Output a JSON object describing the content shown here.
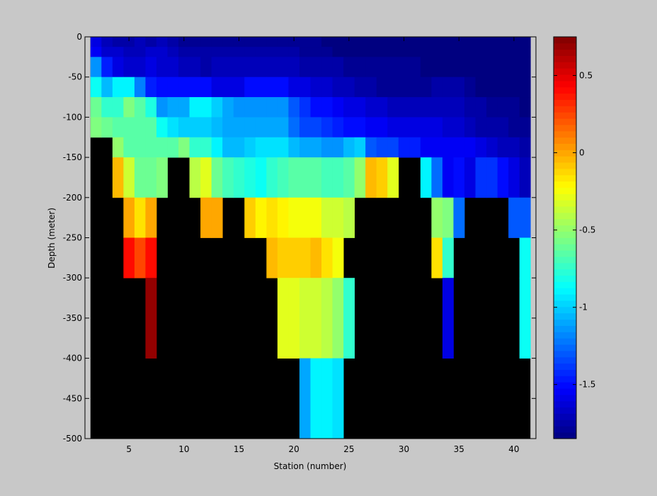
{
  "colors": {
    "figure_bg": "#c8c8c8",
    "mask": "#000000"
  },
  "chart_data": {
    "type": "heatmap",
    "xlabel": "Station (number)",
    "ylabel": "Depth (meter)",
    "xlim": [
      1,
      42
    ],
    "ylim": [
      -500,
      0
    ],
    "xticks": [
      5,
      10,
      15,
      20,
      25,
      30,
      35,
      40
    ],
    "yticks": [
      0,
      -50,
      -100,
      -150,
      -200,
      -250,
      -300,
      -350,
      -400,
      -450,
      -500
    ],
    "colormap": "jet",
    "clim": [
      -1.85,
      0.75
    ],
    "colorbar_ticks": [
      0.5,
      0,
      -0.5,
      -1,
      -1.5
    ],
    "depth_bins": [
      [
        0,
        -12.5
      ],
      [
        -12.5,
        -25
      ],
      [
        -25,
        -50
      ],
      [
        -50,
        -75
      ],
      [
        -75,
        -100
      ],
      [
        -100,
        -125
      ],
      [
        -125,
        -150
      ],
      [
        -150,
        -200
      ],
      [
        -200,
        -250
      ],
      [
        -250,
        -300
      ],
      [
        -300,
        -400
      ],
      [
        -400,
        -500
      ]
    ],
    "stations": [
      2,
      3,
      4,
      5,
      6,
      7,
      8,
      9,
      10,
      11,
      12,
      13,
      14,
      15,
      16,
      17,
      18,
      19,
      20,
      21,
      22,
      23,
      24,
      25,
      26,
      27,
      28,
      29,
      30,
      31,
      32,
      33,
      34,
      35,
      36,
      37,
      38,
      39,
      40,
      41
    ],
    "values_note": "rows = depth_bins, columns = stations; null = no data (black)",
    "values": [
      [
        -1.6,
        -1.7,
        -1.75,
        -1.75,
        -1.7,
        -1.75,
        -1.7,
        -1.75,
        -1.8,
        -1.8,
        -1.8,
        -1.8,
        -1.8,
        -1.8,
        -1.8,
        -1.8,
        -1.8,
        -1.8,
        -1.8,
        -1.8,
        -1.8,
        -1.85,
        -1.85,
        -1.85,
        -1.85,
        -1.85,
        -1.85,
        -1.85,
        -1.85,
        -1.85,
        -1.85,
        -1.85,
        -1.85,
        -1.85,
        -1.85,
        -1.85,
        -1.85,
        -1.85,
        -1.85,
        -1.85
      ],
      [
        -1.55,
        -1.65,
        -1.65,
        -1.7,
        -1.7,
        -1.65,
        -1.65,
        -1.7,
        -1.75,
        -1.75,
        -1.75,
        -1.75,
        -1.75,
        -1.75,
        -1.75,
        -1.75,
        -1.75,
        -1.75,
        -1.75,
        -1.8,
        -1.8,
        -1.8,
        -1.85,
        -1.85,
        -1.85,
        -1.85,
        -1.85,
        -1.85,
        -1.85,
        -1.85,
        -1.85,
        -1.85,
        -1.85,
        -1.85,
        -1.85,
        -1.85,
        -1.85,
        -1.85,
        -1.85,
        -1.85
      ],
      [
        -1.15,
        -1.45,
        -1.6,
        -1.65,
        -1.65,
        -1.6,
        -1.65,
        -1.65,
        -1.7,
        -1.7,
        -1.75,
        -1.7,
        -1.7,
        -1.7,
        -1.7,
        -1.7,
        -1.7,
        -1.7,
        -1.7,
        -1.75,
        -1.75,
        -1.75,
        -1.75,
        -1.8,
        -1.8,
        -1.8,
        -1.8,
        -1.8,
        -1.8,
        -1.8,
        -1.85,
        -1.85,
        -1.85,
        -1.85,
        -1.85,
        -1.85,
        -1.85,
        -1.85,
        -1.85,
        -1.85
      ],
      [
        -0.85,
        -1.05,
        -0.9,
        -0.9,
        -1.2,
        -1.45,
        -1.5,
        -1.5,
        -1.5,
        -1.5,
        -1.5,
        -1.6,
        -1.6,
        -1.6,
        -1.5,
        -1.5,
        -1.5,
        -1.5,
        -1.6,
        -1.6,
        -1.65,
        -1.65,
        -1.7,
        -1.7,
        -1.75,
        -1.75,
        -1.8,
        -1.8,
        -1.8,
        -1.8,
        -1.8,
        -1.75,
        -1.75,
        -1.75,
        -1.8,
        -1.85,
        -1.85,
        -1.85,
        -1.85,
        -1.85
      ],
      [
        -0.6,
        -0.75,
        -0.75,
        -0.55,
        -0.65,
        -0.8,
        -1.15,
        -1.1,
        -1.1,
        -0.9,
        -0.9,
        -1.0,
        -1.1,
        -1.15,
        -1.15,
        -1.15,
        -1.15,
        -1.15,
        -1.3,
        -1.4,
        -1.5,
        -1.5,
        -1.55,
        -1.6,
        -1.6,
        -1.65,
        -1.65,
        -1.7,
        -1.7,
        -1.7,
        -1.7,
        -1.7,
        -1.7,
        -1.7,
        -1.75,
        -1.75,
        -1.8,
        -1.8,
        -1.8,
        -1.85
      ],
      [
        -0.55,
        -0.6,
        -0.65,
        -0.65,
        -0.65,
        -0.65,
        -0.85,
        -0.95,
        -1.0,
        -1.0,
        -1.0,
        -1.05,
        -1.1,
        -1.1,
        -1.1,
        -1.1,
        -1.1,
        -1.1,
        -1.25,
        -1.35,
        -1.35,
        -1.4,
        -1.45,
        -1.5,
        -1.5,
        -1.55,
        -1.55,
        -1.6,
        -1.6,
        -1.6,
        -1.6,
        -1.6,
        -1.65,
        -1.65,
        -1.7,
        -1.75,
        -1.75,
        -1.75,
        -1.8,
        -1.8
      ],
      [
        null,
        null,
        -0.5,
        -0.65,
        -0.65,
        -0.65,
        -0.65,
        -0.65,
        -0.55,
        -0.75,
        -0.75,
        -0.9,
        -1.05,
        -1.05,
        -1.0,
        -0.95,
        -0.95,
        -0.95,
        -1.05,
        -1.1,
        -1.1,
        -1.15,
        -1.15,
        -1.05,
        -1.0,
        -1.3,
        -1.35,
        -1.35,
        -1.45,
        -1.45,
        -1.55,
        -1.55,
        -1.55,
        -1.55,
        -1.55,
        -1.6,
        -1.65,
        -1.7,
        -1.7,
        -1.75
      ],
      [
        null,
        null,
        -0.05,
        -0.35,
        -0.6,
        -0.6,
        -0.55,
        null,
        null,
        -0.4,
        -0.3,
        -0.6,
        -0.7,
        -0.75,
        -0.8,
        -0.85,
        -0.75,
        -0.7,
        -0.65,
        -0.65,
        -0.65,
        -0.7,
        -0.7,
        -0.65,
        -0.5,
        -0.05,
        -0.1,
        -0.3,
        null,
        null,
        -0.9,
        -1.25,
        -1.55,
        -1.5,
        -1.6,
        -1.4,
        -1.4,
        -1.5,
        -1.6,
        -1.7
      ],
      [
        null,
        null,
        null,
        0.0,
        -0.15,
        0.0,
        null,
        null,
        null,
        null,
        0.0,
        0.0,
        null,
        null,
        -0.1,
        -0.2,
        -0.15,
        -0.2,
        -0.25,
        -0.25,
        -0.25,
        -0.35,
        -0.35,
        -0.4,
        null,
        null,
        null,
        null,
        null,
        null,
        null,
        -0.5,
        -0.55,
        -1.25,
        null,
        null,
        null,
        null,
        -1.3,
        -1.3
      ],
      [
        null,
        null,
        null,
        0.4,
        0.25,
        0.4,
        null,
        null,
        null,
        null,
        null,
        null,
        null,
        null,
        null,
        null,
        -0.05,
        -0.1,
        -0.1,
        -0.1,
        -0.05,
        -0.15,
        -0.25,
        null,
        null,
        null,
        null,
        null,
        null,
        null,
        null,
        -0.15,
        -0.75,
        null,
        null,
        null,
        null,
        null,
        null,
        -0.85
      ],
      [
        null,
        null,
        null,
        null,
        null,
        0.7,
        null,
        null,
        null,
        null,
        null,
        null,
        null,
        null,
        null,
        null,
        null,
        -0.3,
        -0.3,
        -0.35,
        -0.35,
        -0.4,
        -0.5,
        -0.75,
        null,
        null,
        null,
        null,
        null,
        null,
        null,
        null,
        -1.6,
        null,
        null,
        null,
        null,
        null,
        null,
        -0.85
      ],
      [
        null,
        null,
        null,
        null,
        null,
        null,
        null,
        null,
        null,
        null,
        null,
        null,
        null,
        null,
        null,
        null,
        null,
        null,
        null,
        -1.1,
        -0.9,
        -0.9,
        -0.95,
        null,
        null,
        null,
        null,
        null,
        null,
        null,
        null,
        null,
        null,
        null,
        null,
        null,
        null,
        null,
        null,
        null
      ]
    ]
  }
}
